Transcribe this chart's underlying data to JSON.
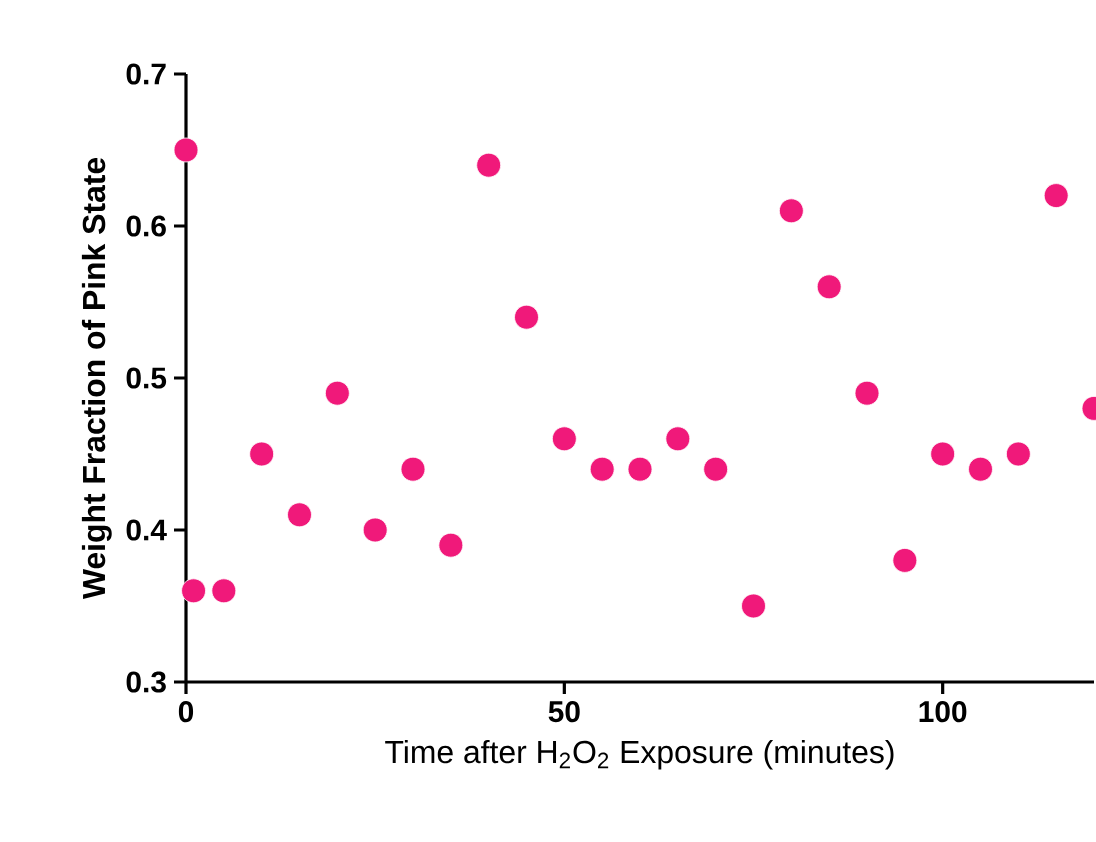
{
  "chart_data": {
    "type": "scatter",
    "xlabel": "Time after H$_{2}$O$_{2}$ Exposure (minutes)",
    "ylabel": "Weight Fraction of Pink State",
    "x": [
      0,
      1,
      5,
      10,
      15,
      20,
      25,
      30,
      35,
      40,
      45,
      50,
      55,
      60,
      65,
      70,
      75,
      80,
      85,
      90,
      95,
      100,
      105,
      110,
      115,
      120
    ],
    "values": [
      0.65,
      0.36,
      0.36,
      0.45,
      0.41,
      0.49,
      0.4,
      0.44,
      0.39,
      0.64,
      0.54,
      0.46,
      0.44,
      0.44,
      0.46,
      0.44,
      0.35,
      0.61,
      0.56,
      0.49,
      0.38,
      0.45,
      0.44,
      0.45,
      0.62,
      0.48
    ],
    "color": "#f0197a",
    "marker": "circle",
    "xlim": [
      0,
      120
    ],
    "ylim": [
      0.3,
      0.7
    ],
    "xticks": [
      0,
      50,
      100
    ],
    "yticks": [
      0.3,
      0.4,
      0.5,
      0.6,
      0.7
    ],
    "grid": false,
    "legend": false
  }
}
